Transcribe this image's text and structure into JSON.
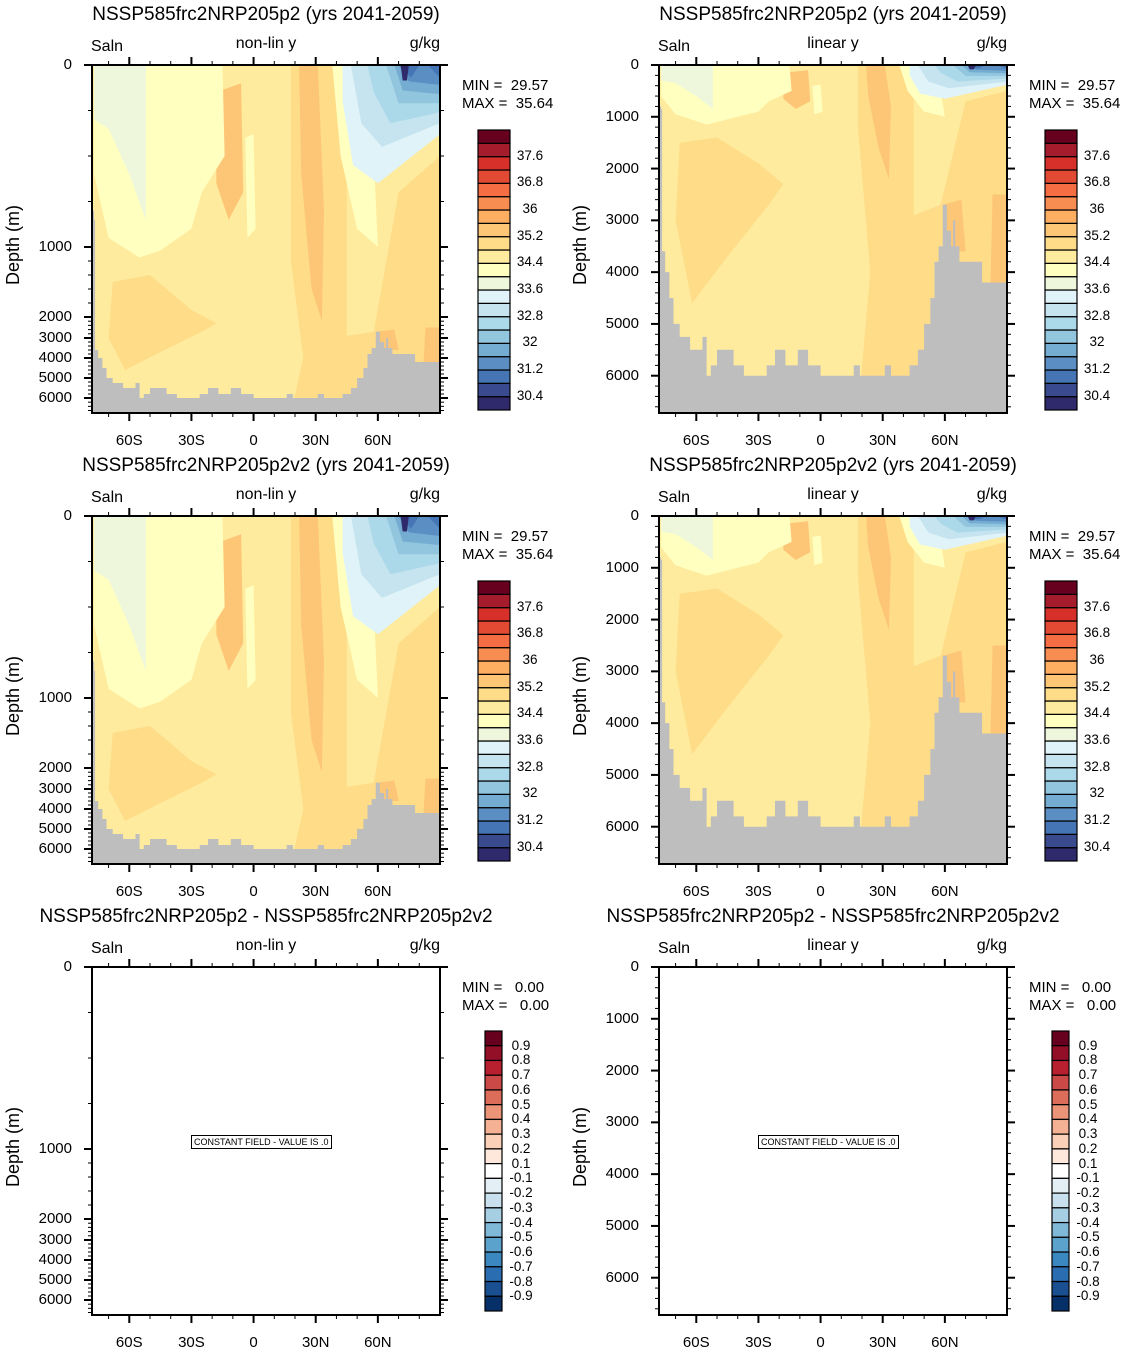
{
  "panels": [
    {
      "title": "NSSP585frc2NRP205p2 (yrs 2041-2059)",
      "left_label": "Saln",
      "center_label": "non-lin y",
      "right_label": "g/kg",
      "ylabel": "Depth (m)",
      "min_label": "MIN =  29.57",
      "max_label": "MAX =  35.64",
      "yscale": "non-linear",
      "field": "salinity"
    },
    {
      "title": "NSSP585frc2NRP205p2 (yrs 2041-2059)",
      "left_label": "Saln",
      "center_label": "linear y",
      "right_label": "g/kg",
      "ylabel": "Depth (m)",
      "min_label": "MIN =  29.57",
      "max_label": "MAX =  35.64",
      "yscale": "linear",
      "field": "salinity"
    },
    {
      "title": "NSSP585frc2NRP205p2v2 (yrs 2041-2059)",
      "left_label": "Saln",
      "center_label": "non-lin y",
      "right_label": "g/kg",
      "ylabel": "Depth (m)",
      "min_label": "MIN =  29.57",
      "max_label": "MAX =  35.64",
      "yscale": "non-linear",
      "field": "salinity"
    },
    {
      "title": "NSSP585frc2NRP205p2v2 (yrs 2041-2059)",
      "left_label": "Saln",
      "center_label": "linear y",
      "right_label": "g/kg",
      "ylabel": "Depth (m)",
      "min_label": "MIN =  29.57",
      "max_label": "MAX =  35.64",
      "yscale": "linear",
      "field": "salinity"
    },
    {
      "title": "NSSP585frc2NRP205p2 - NSSP585frc2NRP205p2v2",
      "left_label": "Saln",
      "center_label": "non-lin y",
      "right_label": "g/kg",
      "ylabel": "Depth (m)",
      "min_label": "MIN =   0.00",
      "max_label": "MAX =   0.00",
      "yscale": "non-linear",
      "field": "difference",
      "constant_label": "CONSTANT FIELD - VALUE IS .0"
    },
    {
      "title": "NSSP585frc2NRP205p2 - NSSP585frc2NRP205p2v2",
      "left_label": "Saln",
      "center_label": "linear y",
      "right_label": "g/kg",
      "ylabel": "Depth (m)",
      "min_label": "MIN =   0.00",
      "max_label": "MAX =   0.00",
      "yscale": "linear",
      "field": "difference",
      "constant_label": "CONSTANT FIELD - VALUE IS .0"
    }
  ],
  "chart_data": {
    "type": "heatmap",
    "x_range": [
      -78,
      90
    ],
    "x_ticks": [
      {
        "value": -60,
        "label": "60S"
      },
      {
        "value": -30,
        "label": "30S"
      },
      {
        "value": 0,
        "label": "0"
      },
      {
        "value": 30,
        "label": "30N"
      },
      {
        "value": 60,
        "label": "60N"
      }
    ],
    "y_range": [
      0,
      6720
    ],
    "y_ticks_nonlinear": [
      "0",
      "1000",
      "2000",
      "3000",
      "4000",
      "5000",
      "6000"
    ],
    "y_ticks_linear": [
      "0",
      "1000",
      "2000",
      "3000",
      "4000",
      "5000",
      "6000"
    ],
    "land_color": "#bebebe",
    "salinity_colorbar": {
      "levels_start": 30.4,
      "levels_step": 0.4,
      "labels": [
        "30.4",
        "31.2",
        "32",
        "32.8",
        "33.6",
        "34.4",
        "35.2",
        "36",
        "36.8",
        "37.6"
      ],
      "colors_bottom_to_top": [
        "#2e2a6b",
        "#3a4a8f",
        "#4575b4",
        "#5b8fc4",
        "#74add1",
        "#92c5de",
        "#abd9e9",
        "#c6e4ef",
        "#e0f3f8",
        "#eef7dc",
        "#ffffc0",
        "#feeb9e",
        "#fedc88",
        "#fdc677",
        "#fdae61",
        "#f88d52",
        "#f46d43",
        "#e34a33",
        "#d7302a",
        "#a51c2c",
        "#67001f"
      ]
    },
    "difference_colorbar": {
      "labels": [
        "0.9",
        "0.8",
        "0.7",
        "0.6",
        "0.5",
        "0.4",
        "0.3",
        "0.2",
        "0.1",
        "-0.1",
        "-0.2",
        "-0.3",
        "-0.4",
        "-0.5",
        "-0.6",
        "-0.7",
        "-0.8",
        "-0.9"
      ],
      "colors_top_to_bottom": [
        "#67001f",
        "#930f28",
        "#b8202f",
        "#cb4a47",
        "#db6d5a",
        "#ec9478",
        "#f4b194",
        "#fbd0b9",
        "#fde8db",
        "#ffffff",
        "#e4eef5",
        "#c9e0ee",
        "#a7cfe4",
        "#80b8d8",
        "#5ba2cd",
        "#3b88c0",
        "#2a6db0",
        "#1a4f91",
        "#073068"
      ]
    },
    "salinity_background_class": 11,
    "salinity_regions": [
      {
        "class": 12,
        "points": [
          [
            -68,
            1500
          ],
          [
            -50,
            1400
          ],
          [
            -30,
            1900
          ],
          [
            -18,
            2300
          ],
          [
            -25,
            2700
          ],
          [
            -45,
            3700
          ],
          [
            -62,
            4600
          ],
          [
            -70,
            3000
          ]
        ]
      },
      {
        "class": 12,
        "points": [
          [
            18,
            0
          ],
          [
            45,
            0
          ],
          [
            45,
            2900
          ],
          [
            58,
            2700
          ],
          [
            70,
            700
          ],
          [
            90,
            500
          ],
          [
            90,
            6720
          ],
          [
            18,
            6720
          ],
          [
            24,
            4000
          ],
          [
            18,
            1200
          ]
        ]
      },
      {
        "class": 13,
        "points": [
          [
            -18,
            150
          ],
          [
            -6,
            100
          ],
          [
            -5,
            700
          ],
          [
            -12,
            850
          ],
          [
            -18,
            650
          ]
        ]
      },
      {
        "class": 13,
        "points": [
          [
            22,
            0
          ],
          [
            31,
            0
          ],
          [
            34,
            800
          ],
          [
            33,
            2200
          ],
          [
            28,
            1600
          ],
          [
            23,
            600
          ]
        ]
      },
      {
        "class": 13,
        "points": [
          [
            59,
            2700
          ],
          [
            68,
            2600
          ],
          [
            70,
            3600
          ],
          [
            59,
            3600
          ]
        ]
      },
      {
        "class": 13,
        "points": [
          [
            83,
            2500
          ],
          [
            90,
            2500
          ],
          [
            90,
            4300
          ],
          [
            82,
            4300
          ]
        ]
      },
      {
        "class": 10,
        "points": [
          [
            -77,
            0
          ],
          [
            -15,
            0
          ],
          [
            -14,
            500
          ],
          [
            -25,
            700
          ],
          [
            -30,
            900
          ],
          [
            -45,
            1050
          ],
          [
            -55,
            1150
          ],
          [
            -70,
            950
          ],
          [
            -77,
            600
          ]
        ]
      },
      {
        "class": 10,
        "points": [
          [
            -4,
            400
          ],
          [
            0,
            380
          ],
          [
            1,
            900
          ],
          [
            -3,
            950
          ]
        ]
      },
      {
        "class": 10,
        "points": [
          [
            38,
            0
          ],
          [
            56,
            0
          ],
          [
            60,
            1000
          ],
          [
            50,
            900
          ],
          [
            42,
            500
          ]
        ]
      },
      {
        "class": 9,
        "points": [
          [
            -77,
            0
          ],
          [
            -52,
            0
          ],
          [
            -52,
            850
          ],
          [
            -60,
            600
          ],
          [
            -70,
            350
          ],
          [
            -77,
            300
          ]
        ]
      },
      {
        "class": 8,
        "points": [
          [
            43,
            0
          ],
          [
            90,
            0
          ],
          [
            90,
            380
          ],
          [
            60,
            650
          ],
          [
            48,
            550
          ],
          [
            43,
            200
          ]
        ]
      },
      {
        "class": 7,
        "points": [
          [
            47,
            0
          ],
          [
            90,
            0
          ],
          [
            90,
            320
          ],
          [
            62,
            450
          ],
          [
            52,
            320
          ]
        ]
      },
      {
        "class": 6,
        "points": [
          [
            55,
            0
          ],
          [
            90,
            0
          ],
          [
            90,
            260
          ],
          [
            66,
            320
          ],
          [
            58,
            150
          ]
        ]
      },
      {
        "class": 5,
        "points": [
          [
            64,
            0
          ],
          [
            90,
            0
          ],
          [
            90,
            210
          ],
          [
            70,
            210
          ]
        ]
      },
      {
        "class": 4,
        "points": [
          [
            68,
            0
          ],
          [
            90,
            0
          ],
          [
            90,
            160
          ],
          [
            72,
            140
          ]
        ]
      },
      {
        "class": 3,
        "points": [
          [
            70,
            0
          ],
          [
            90,
            0
          ],
          [
            90,
            110
          ],
          [
            75,
            90
          ]
        ]
      },
      {
        "class": 2,
        "points": [
          [
            71,
            0
          ],
          [
            80,
            0
          ],
          [
            76,
            70
          ]
        ]
      },
      {
        "class": 2,
        "points": [
          [
            84,
            0
          ],
          [
            90,
            0
          ],
          [
            90,
            70
          ]
        ]
      },
      {
        "class": 0,
        "points": [
          [
            71,
            0
          ],
          [
            75,
            0
          ],
          [
            74,
            85
          ],
          [
            72,
            85
          ]
        ]
      }
    ],
    "bathymetry": [
      [
        -78,
        800
      ],
      [
        -77,
        850
      ],
      [
        -76.5,
        3600
      ],
      [
        -75,
        4000
      ],
      [
        -73,
        4500
      ],
      [
        -71,
        5000
      ],
      [
        -68,
        5250
      ],
      [
        -63,
        5500
      ],
      [
        -58,
        5500
      ],
      [
        -57,
        5250
      ],
      [
        -55,
        6000
      ],
      [
        -53,
        5800
      ],
      [
        -50,
        5500
      ],
      [
        -42,
        5800
      ],
      [
        -37,
        6000
      ],
      [
        -30,
        6000
      ],
      [
        -26,
        5800
      ],
      [
        -22,
        5500
      ],
      [
        -17,
        5800
      ],
      [
        -11,
        5500
      ],
      [
        -6,
        5800
      ],
      [
        0,
        6000
      ],
      [
        14,
        6000
      ],
      [
        16,
        5800
      ],
      [
        19,
        6000
      ],
      [
        28,
        6000
      ],
      [
        31,
        5800
      ],
      [
        34,
        6000
      ],
      [
        41,
        6000
      ],
      [
        43,
        5800
      ],
      [
        47,
        5500
      ],
      [
        50,
        5000
      ],
      [
        53,
        4500
      ],
      [
        55,
        3800
      ],
      [
        57,
        3500
      ],
      [
        59,
        2700
      ],
      [
        61,
        3200
      ],
      [
        63,
        3500
      ],
      [
        64,
        3000
      ],
      [
        65,
        3500
      ],
      [
        67,
        3800
      ],
      [
        76,
        3800
      ],
      [
        78,
        4200
      ],
      [
        90,
        4200
      ]
    ]
  }
}
